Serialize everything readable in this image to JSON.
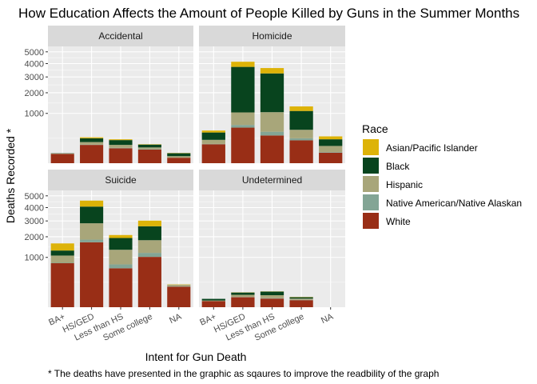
{
  "chart_data": {
    "type": "bar",
    "stacked": true,
    "title": "How Education Affects the Amount of People Killed by Guns in the Summer Months",
    "xlabel": "Intent for Gun Death",
    "ylabel": "Deaths Recorded *",
    "caption": "* The deaths have presented in the graphic as sqaures to improve the readbility of the graph",
    "y_scale": "sqrt",
    "ylim": [
      0,
      5500
    ],
    "y_ticks": [
      {
        "value": 1000,
        "label": "1000"
      },
      {
        "value": 2000,
        "label": "2000"
      },
      {
        "value": 3000,
        "label": "3000"
      },
      {
        "value": 4000,
        "label": "4000"
      },
      {
        "value": 5000,
        "label": "5000"
      }
    ],
    "grid": true,
    "legend": {
      "title": "Race",
      "position": "right",
      "entries": [
        "Asian/Pacific Islander",
        "Black",
        "Hispanic",
        "Native American/Native Alaskan",
        "White"
      ]
    },
    "series_order_bottom_to_top": [
      "White",
      "Native American/Native Alaskan",
      "Hispanic",
      "Black",
      "Asian/Pacific Islander"
    ],
    "colors": {
      "Asian/Pacific Islander": "#DDB308",
      "Black": "#08441E",
      "Hispanic": "#A8A67A",
      "Native American/Native Alaskan": "#83A595",
      "White": "#992E16"
    },
    "categories": [
      "BA+",
      "HS/GED",
      "Less than HS",
      "Some college",
      "NA"
    ],
    "panels": [
      {
        "name": "Accidental",
        "bars": [
          {
            "White": 35,
            "Native American/Native Alaskan": 0,
            "Hispanic": 3,
            "Black": 2,
            "Asian/Pacific Islander": 0
          },
          {
            "White": 135,
            "Native American/Native Alaskan": 5,
            "Hispanic": 40,
            "Black": 70,
            "Asian/Pacific Islander": 20
          },
          {
            "White": 90,
            "Native American/Native Alaskan": 5,
            "Hispanic": 40,
            "Black": 80,
            "Asian/Pacific Islander": 15
          },
          {
            "White": 75,
            "Native American/Native Alaskan": 5,
            "Hispanic": 20,
            "Black": 40,
            "Asian/Pacific Islander": 5
          },
          {
            "White": 12,
            "Native American/Native Alaskan": 0,
            "Hispanic": 8,
            "Black": 20,
            "Asian/Pacific Islander": 2
          }
        ]
      },
      {
        "name": "Homicide",
        "bars": [
          {
            "White": 145,
            "Native American/Native Alaskan": 5,
            "Hispanic": 70,
            "Black": 160,
            "Asian/Pacific Islander": 50
          },
          {
            "White": 510,
            "Native American/Native Alaskan": 80,
            "Hispanic": 450,
            "Black": 2700,
            "Asian/Pacific Islander": 410
          },
          {
            "White": 310,
            "Native American/Native Alaskan": 90,
            "Hispanic": 650,
            "Black": 2200,
            "Asian/Pacific Islander": 400
          },
          {
            "White": 210,
            "Native American/Native Alaskan": 40,
            "Hispanic": 200,
            "Black": 650,
            "Asian/Pacific Islander": 200
          },
          {
            "White": 45,
            "Native American/Native Alaskan": 5,
            "Hispanic": 70,
            "Black": 110,
            "Asian/Pacific Islander": 60
          }
        ]
      },
      {
        "name": "Suicide",
        "bars": [
          {
            "White": 780,
            "Native American/Native Alaskan": 15,
            "Hispanic": 280,
            "Black": 220,
            "Asian/Pacific Islander": 345
          },
          {
            "White": 1700,
            "Native American/Native Alaskan": 140,
            "Hispanic": 1000,
            "Black": 1240,
            "Asian/Pacific Islander": 500
          },
          {
            "White": 610,
            "Native American/Native Alaskan": 130,
            "Hispanic": 590,
            "Black": 600,
            "Asian/Pacific Islander": 170
          },
          {
            "White": 1020,
            "Native American/Native Alaskan": 170,
            "Hispanic": 620,
            "Black": 830,
            "Asian/Pacific Islander": 380
          },
          {
            "White": 170,
            "Native American/Native Alaskan": 5,
            "Hispanic": 30,
            "Black": 0,
            "Asian/Pacific Islander": 5
          }
        ]
      },
      {
        "name": "Undetermined",
        "bars": [
          {
            "White": 15,
            "Native American/Native Alaskan": 0,
            "Hispanic": 3,
            "Black": 10,
            "Asian/Pacific Islander": 0
          },
          {
            "White": 40,
            "Native American/Native Alaskan": 2,
            "Hispanic": 20,
            "Black": 25,
            "Asian/Pacific Islander": 2
          },
          {
            "White": 30,
            "Native American/Native Alaskan": 3,
            "Hispanic": 25,
            "Black": 40,
            "Asian/Pacific Islander": 2
          },
          {
            "White": 20,
            "Native American/Native Alaskan": 2,
            "Hispanic": 8,
            "Black": 10,
            "Asian/Pacific Islander": 2
          },
          {
            "White": 0,
            "Native American/Native Alaskan": 0,
            "Hispanic": 0,
            "Black": 0,
            "Asian/Pacific Islander": 0
          }
        ]
      }
    ]
  }
}
